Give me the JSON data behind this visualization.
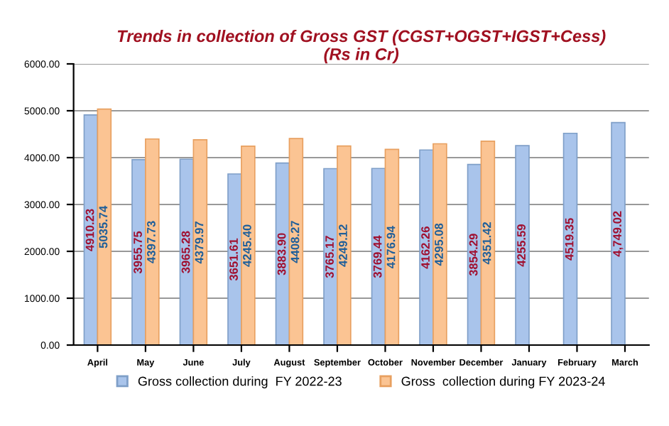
{
  "chart_data": {
    "type": "bar",
    "title": "Trends in collection of Gross GST (CGST+OGST+IGST+Cess)\n(Rs in Cr)",
    "categories": [
      "April",
      "May",
      "June",
      "July",
      "August",
      "September",
      "October",
      "November",
      "December",
      "January",
      "February",
      "March"
    ],
    "series": [
      {
        "name": "Gross collection during  FY 2022-23",
        "color": "#a9c4eb",
        "values": [
          4910.23,
          3955.75,
          3965.28,
          3651.61,
          3883.9,
          3765.17,
          3769.44,
          4162.26,
          3854.29,
          4255.59,
          4519.35,
          4749.02
        ],
        "value_labels": [
          "4910.23",
          "3955.75",
          "3965.28",
          "3651.61",
          "3883.90",
          "3765.17",
          "3769.44",
          "4162.26",
          "3854.29",
          "4255.59",
          "4519.35",
          "4,749.02"
        ]
      },
      {
        "name": "Gross  collection during FY 2023-24",
        "color": "#fbc493",
        "values": [
          5035.74,
          4397.73,
          4379.97,
          4245.4,
          4408.27,
          4249.12,
          4176.94,
          4295.08,
          4351.42,
          null,
          null,
          null
        ],
        "value_labels": [
          "5035.74",
          "4397.73",
          "4379.97",
          "4245.40",
          "4408.27",
          "4249.12",
          "4176.94",
          "4295.08",
          "4351.42",
          null,
          null,
          null
        ]
      }
    ],
    "ylim": [
      0,
      6000
    ],
    "yticks": [
      {
        "value": 0,
        "label": "0.00"
      },
      {
        "value": 1000,
        "label": "1000.00"
      },
      {
        "value": 2000,
        "label": "2000.00"
      },
      {
        "value": 3000,
        "label": "3000.00"
      },
      {
        "value": 4000,
        "label": "4000.00"
      },
      {
        "value": 5000,
        "label": "5000.00"
      },
      {
        "value": 6000,
        "label": "6000.00"
      }
    ],
    "grid": "y",
    "legend": "bottom"
  }
}
